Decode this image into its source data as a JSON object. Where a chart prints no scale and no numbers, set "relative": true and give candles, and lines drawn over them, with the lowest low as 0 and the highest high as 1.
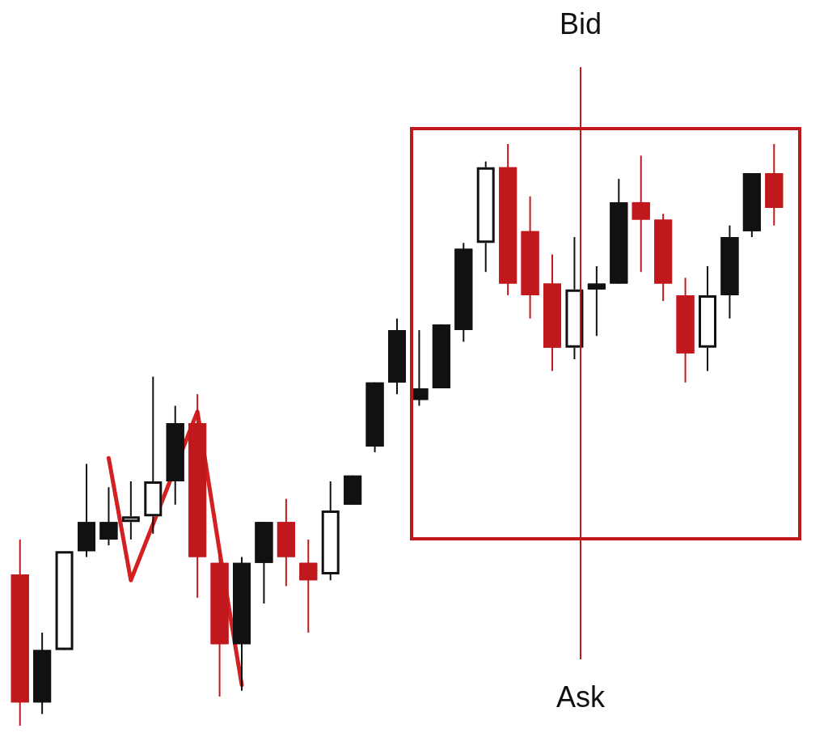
{
  "chart_data": {
    "type": "candlestick",
    "relative": true,
    "tick_labels": false,
    "legend": false,
    "categories": [
      null,
      null,
      null,
      null,
      null,
      null,
      null,
      null,
      null,
      null,
      null,
      null,
      null,
      null,
      null,
      null,
      null,
      null,
      null,
      null,
      null,
      null,
      null,
      null,
      null,
      null,
      null,
      null,
      null,
      null,
      null,
      null,
      null,
      null,
      null
    ],
    "ohlc": [
      [
        0.26,
        0.32,
        0,
        0.04
      ],
      [
        0.04,
        0.16,
        0.02,
        0.13
      ],
      [
        0.13,
        0.3,
        0.13,
        0.3
      ],
      [
        0.3,
        0.45,
        0.29,
        0.35
      ],
      [
        0.32,
        0.41,
        0.31,
        0.35
      ],
      [
        0.35,
        0.42,
        0.32,
        0.36
      ],
      [
        0.36,
        0.6,
        0.33,
        0.42
      ],
      [
        0.42,
        0.55,
        0.38,
        0.52
      ],
      [
        0.52,
        0.57,
        0.22,
        0.29
      ],
      [
        0.28,
        0.3,
        0.05,
        0.14
      ],
      [
        0.14,
        0.29,
        0.06,
        0.28
      ],
      [
        0.28,
        0.35,
        0.21,
        0.35
      ],
      [
        0.35,
        0.39,
        0.24,
        0.29
      ],
      [
        0.28,
        0.32,
        0.16,
        0.25
      ],
      [
        0.26,
        0.42,
        0.25,
        0.37
      ],
      [
        0.38,
        0.43,
        0.38,
        0.43
      ],
      [
        0.48,
        0.59,
        0.47,
        0.59
      ],
      [
        0.59,
        0.7,
        0.57,
        0.68
      ],
      [
        0.56,
        0.68,
        0.55,
        0.58
      ],
      [
        0.58,
        0.69,
        0.58,
        0.69
      ],
      [
        0.68,
        0.83,
        0.66,
        0.82
      ],
      [
        0.83,
        0.97,
        0.78,
        0.96
      ],
      [
        0.96,
        1.0,
        0.74,
        0.76
      ],
      [
        0.85,
        0.91,
        0.7,
        0.74
      ],
      [
        0.76,
        0.81,
        0.61,
        0.65
      ],
      [
        0.65,
        0.84,
        0.63,
        0.75
      ],
      [
        0.75,
        0.79,
        0.67,
        0.76
      ],
      [
        0.76,
        0.94,
        0.76,
        0.9
      ],
      [
        0.9,
        0.98,
        0.78,
        0.87
      ],
      [
        0.87,
        0.88,
        0.73,
        0.76
      ],
      [
        0.74,
        0.77,
        0.59,
        0.64
      ],
      [
        0.65,
        0.79,
        0.61,
        0.74
      ],
      [
        0.74,
        0.86,
        0.7,
        0.84
      ],
      [
        0.85,
        0.95,
        0.84,
        0.95
      ],
      [
        0.95,
        1.0,
        0.86,
        0.89
      ]
    ],
    "colors": [
      "#c0181c",
      "#111111",
      "#ffffff",
      "#111111",
      "#111111",
      "#ffffff",
      "#ffffff",
      "#111111",
      "#c0181c",
      "#c0181c",
      "#111111",
      "#111111",
      "#c0181c",
      "#c0181c",
      "#ffffff",
      "#111111",
      "#111111",
      "#111111",
      "#111111",
      "#111111",
      "#111111",
      "#ffffff",
      "#c0181c",
      "#c0181c",
      "#c0181c",
      "#ffffff",
      "#111111",
      "#111111",
      "#c0181c",
      "#c0181c",
      "#c0181c",
      "#ffffff",
      "#111111",
      "#111111",
      "#c0181c"
    ],
    "series": [
      {
        "type": "line",
        "color": "#d42020",
        "values": [
          null,
          null,
          null,
          null,
          0.46,
          0.25,
          null,
          null,
          0.54,
          0.3,
          0.07,
          null,
          null,
          null,
          null,
          null,
          null,
          null,
          null,
          null,
          null,
          null,
          null,
          null,
          null,
          null,
          null,
          null,
          null,
          null,
          null,
          null,
          null,
          null,
          null
        ]
      }
    ],
    "grid": false,
    "annotations": [
      "Bid",
      "Ask"
    ]
  }
}
